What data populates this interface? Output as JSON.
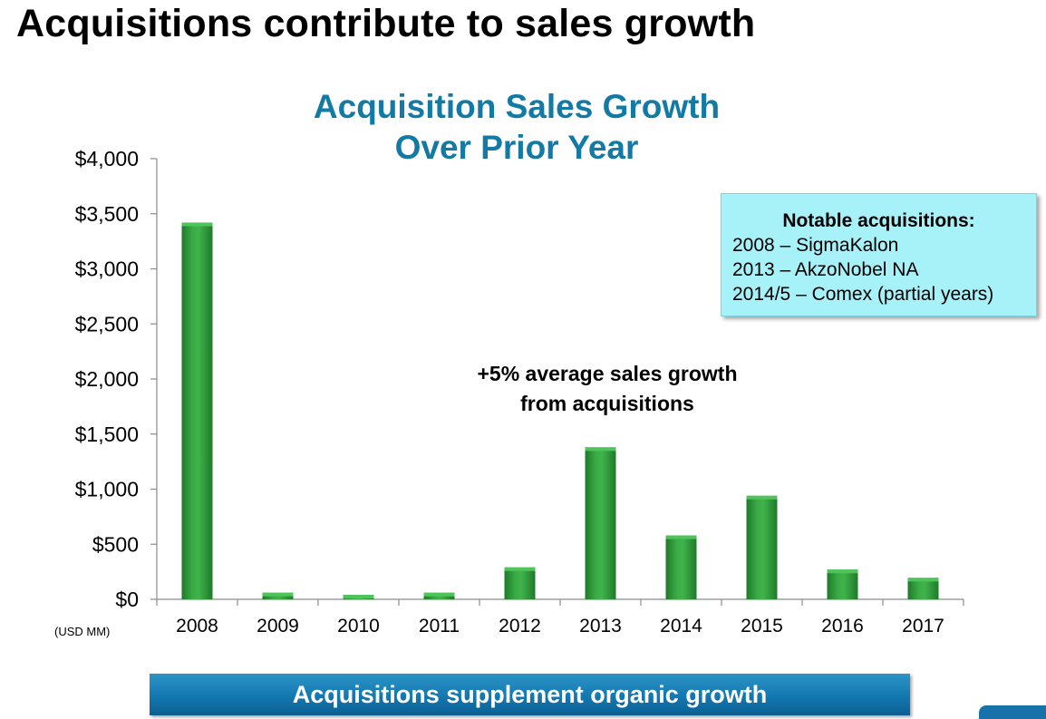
{
  "slide": {
    "title": "Acquisitions contribute to sales growth",
    "banner": "Acquisitions supplement organic growth"
  },
  "callout": {
    "heading": "Notable acquisitions:",
    "lines": [
      "2008 – SigmaKalon",
      "2013 – AkzoNobel NA",
      "2014/5 – Comex (partial years)"
    ]
  },
  "annotation": {
    "lines": [
      "+5% average sales growth",
      "from acquisitions"
    ]
  },
  "colors": {
    "bar": "#2f9a3a",
    "bar_highlight": "#4fc45a",
    "title": "#1379a5",
    "callout_bg": "#a7f1f9",
    "banner": "#1378b0"
  },
  "chart_data": {
    "type": "bar",
    "title_lines": [
      "Acquisition Sales Growth",
      "Over Prior Year"
    ],
    "unit_label": "(USD MM)",
    "categories": [
      "2008",
      "2009",
      "2010",
      "2011",
      "2012",
      "2013",
      "2014",
      "2015",
      "2016",
      "2017"
    ],
    "values": [
      3420,
      60,
      40,
      60,
      290,
      1380,
      580,
      940,
      270,
      195
    ],
    "ylim": [
      0,
      4000
    ],
    "yticks": [
      0,
      500,
      1000,
      1500,
      2000,
      2500,
      3000,
      3500,
      4000
    ],
    "ytick_labels": [
      "$0",
      "$500",
      "$1,000",
      "$1,500",
      "$2,000",
      "$2,500",
      "$3,000",
      "$3,500",
      "$4,000"
    ],
    "grid": false,
    "legend": "none"
  }
}
